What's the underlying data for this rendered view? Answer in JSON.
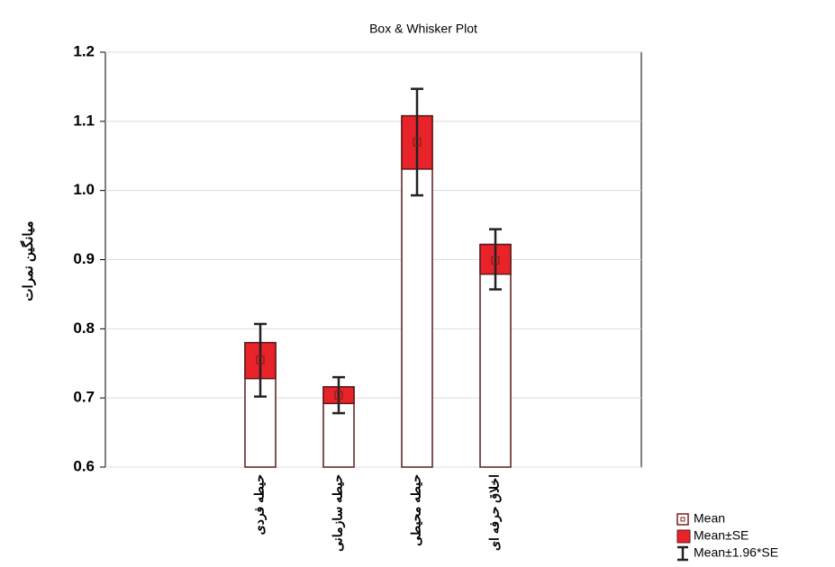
{
  "chart_data": {
    "type": "box",
    "title": "Box & Whisker Plot",
    "ylabel": "میانگین نمرات",
    "categories": [
      "حیطه فردی",
      "حیطه سازمانی",
      "حیطه محیطی",
      "اخلاق حرفه ای"
    ],
    "series": [
      {
        "name": "Mean",
        "color": "#7a1f1f",
        "values": [
          0.755,
          0.704,
          1.07,
          0.899
        ]
      },
      {
        "name": "Mean±SE",
        "color": "#e8232a",
        "low": [
          0.728,
          0.692,
          1.031,
          0.879
        ],
        "high": [
          0.78,
          0.716,
          1.108,
          0.922
        ]
      },
      {
        "name": "Mean±1.96*SE",
        "color": "#222222",
        "low": [
          0.702,
          0.678,
          0.993,
          0.857
        ],
        "high": [
          0.807,
          0.73,
          1.147,
          0.944
        ]
      }
    ],
    "ylim": [
      0.6,
      1.2
    ],
    "yticks": [
      0.6,
      0.7,
      0.8,
      0.9,
      {
        "value": 1,
        "label": "1.0"
      },
      1.1,
      1.2
    ],
    "grid": true
  }
}
